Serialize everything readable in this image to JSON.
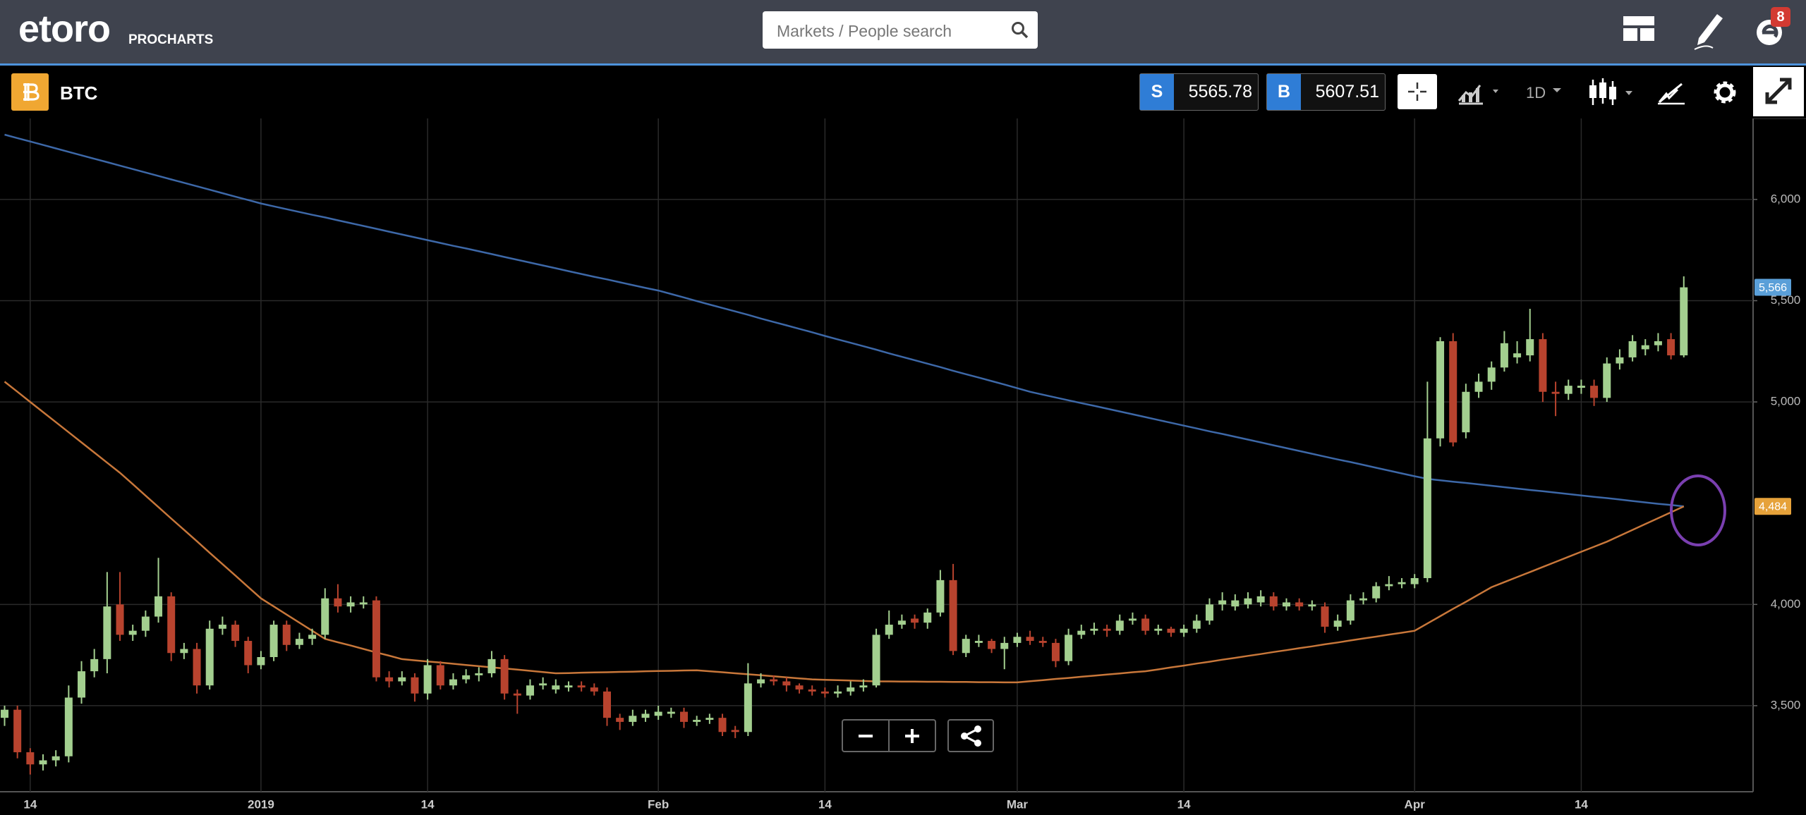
{
  "header": {
    "logo": "etoro",
    "logo_sub": "PROCHARTS",
    "search_placeholder": "Markets / People search",
    "notifications": 8
  },
  "toolbar": {
    "symbol": "BTC",
    "sell_label": "S",
    "sell_price": 5565.78,
    "buy_label": "B",
    "buy_price": 5607.51,
    "interval": "1D"
  },
  "chart_data": {
    "type": "candlestick",
    "categories": [
      null,
      null,
      "14",
      null,
      null,
      null,
      null,
      null,
      null,
      null,
      null,
      null,
      null,
      null,
      null,
      null,
      null,
      null,
      null,
      null,
      "2019",
      null,
      null,
      null,
      null,
      null,
      null,
      null,
      null,
      null,
      null,
      null,
      null,
      "14",
      null,
      null,
      null,
      null,
      null,
      null,
      null,
      null,
      null,
      null,
      null,
      null,
      null,
      null,
      null,
      null,
      null,
      "Feb",
      null,
      null,
      null,
      null,
      null,
      null,
      null,
      null,
      null,
      null,
      null,
      null,
      "14",
      null,
      null,
      null,
      null,
      null,
      null,
      null,
      null,
      null,
      null,
      null,
      null,
      null,
      null,
      "Mar",
      null,
      null,
      null,
      null,
      null,
      null,
      null,
      null,
      null,
      null,
      null,
      null,
      "14",
      null,
      null,
      null,
      null,
      null,
      null,
      null,
      null,
      null,
      null,
      null,
      null,
      null,
      null,
      null,
      null,
      null,
      "Apr",
      null,
      null,
      null,
      null,
      null,
      null,
      null,
      null,
      null,
      null,
      null,
      null,
      "14",
      null,
      null,
      null,
      null,
      null,
      null,
      null,
      null
    ],
    "open": [
      3440,
      3480,
      3270,
      3210,
      3230,
      3250,
      3540,
      3670,
      3730,
      4000,
      3850,
      3870,
      3940,
      4040,
      3760,
      3780,
      3600,
      3880,
      3900,
      3820,
      3700,
      3740,
      3900,
      3800,
      3830,
      3850,
      4030,
      3990,
      4000,
      4020,
      3640,
      3620,
      3640,
      3560,
      3700,
      3600,
      3630,
      3650,
      3660,
      3730,
      3560,
      3550,
      3600,
      3580,
      3590,
      3600,
      3590,
      3570,
      3440,
      3420,
      3440,
      3450,
      3460,
      3470,
      3420,
      3430,
      3440,
      3380,
      3370,
      3610,
      3630,
      3620,
      3600,
      3580,
      3570,
      3560,
      3570,
      3590,
      3600,
      3850,
      3900,
      3930,
      3910,
      3960,
      4120,
      3760,
      3810,
      3820,
      3780,
      3810,
      3840,
      3820,
      3810,
      3720,
      3850,
      3870,
      3880,
      3870,
      3920,
      3930,
      3870,
      3880,
      3860,
      3880,
      3920,
      4000,
      3990,
      4000,
      4010,
      4040,
      3990,
      4010,
      3990,
      3990,
      3890,
      3920,
      4020,
      4030,
      4090,
      4100,
      4100,
      4130,
      4820,
      5300,
      4850,
      5050,
      5100,
      5170,
      5220,
      5230,
      5310,
      5050,
      5040,
      5070,
      5080,
      5020,
      5190,
      5220,
      5260,
      5280,
      5310,
      5230
    ],
    "high": [
      3500,
      3500,
      3290,
      3260,
      3280,
      3600,
      3720,
      3780,
      4160,
      4160,
      3900,
      3970,
      4230,
      4060,
      3810,
      3810,
      3920,
      3940,
      3920,
      3840,
      3770,
      3920,
      3920,
      3860,
      3880,
      4080,
      4100,
      4040,
      4040,
      4040,
      3670,
      3670,
      3660,
      3730,
      3720,
      3660,
      3680,
      3690,
      3770,
      3750,
      3580,
      3630,
      3640,
      3630,
      3620,
      3620,
      3610,
      3590,
      3460,
      3480,
      3480,
      3500,
      3490,
      3490,
      3450,
      3460,
      3460,
      3400,
      3710,
      3660,
      3650,
      3640,
      3610,
      3600,
      3590,
      3600,
      3620,
      3630,
      3880,
      3970,
      3950,
      3950,
      3980,
      4170,
      4200,
      3850,
      3850,
      3830,
      3840,
      3860,
      3870,
      3840,
      3830,
      3880,
      3900,
      3910,
      3900,
      3950,
      3960,
      3950,
      3900,
      3890,
      3900,
      3950,
      4030,
      4060,
      4050,
      4060,
      4070,
      4060,
      4030,
      4030,
      4020,
      4010,
      3950,
      4050,
      4060,
      4110,
      4140,
      4130,
      4150,
      5100,
      5320,
      5340,
      5090,
      5140,
      5200,
      5350,
      5300,
      5460,
      5340,
      5100,
      5110,
      5110,
      5110,
      5220,
      5260,
      5330,
      5310,
      5340,
      5340,
      5620
    ],
    "low": [
      3400,
      3240,
      3160,
      3180,
      3200,
      3220,
      3510,
      3640,
      3660,
      3820,
      3820,
      3840,
      3910,
      3720,
      3730,
      3560,
      3580,
      3850,
      3790,
      3660,
      3680,
      3720,
      3770,
      3780,
      3800,
      3830,
      3960,
      3960,
      3980,
      3620,
      3590,
      3600,
      3520,
      3530,
      3580,
      3580,
      3610,
      3620,
      3640,
      3530,
      3460,
      3530,
      3580,
      3560,
      3570,
      3570,
      3550,
      3400,
      3380,
      3400,
      3420,
      3430,
      3440,
      3390,
      3400,
      3410,
      3350,
      3340,
      3350,
      3590,
      3600,
      3570,
      3560,
      3550,
      3540,
      3540,
      3550,
      3570,
      3590,
      3830,
      3880,
      3880,
      3880,
      3940,
      3750,
      3740,
      3790,
      3760,
      3680,
      3790,
      3800,
      3790,
      3690,
      3700,
      3830,
      3850,
      3840,
      3850,
      3900,
      3850,
      3850,
      3840,
      3840,
      3860,
      3900,
      3970,
      3970,
      3980,
      3990,
      3970,
      3970,
      3970,
      3970,
      3860,
      3870,
      3900,
      4000,
      4010,
      4070,
      4080,
      4080,
      4110,
      4780,
      4780,
      4820,
      5020,
      5060,
      5150,
      5190,
      5200,
      5000,
      4930,
      5010,
      5040,
      4980,
      5000,
      5160,
      5200,
      5230,
      5250,
      5210,
      5220
    ],
    "close": [
      3480,
      3270,
      3210,
      3230,
      3250,
      3540,
      3670,
      3730,
      3990,
      3850,
      3870,
      3940,
      4040,
      3760,
      3780,
      3600,
      3880,
      3900,
      3820,
      3700,
      3740,
      3900,
      3800,
      3830,
      3850,
      4030,
      3990,
      4010,
      4010,
      3640,
      3620,
      3640,
      3560,
      3700,
      3600,
      3630,
      3650,
      3660,
      3730,
      3560,
      3550,
      3600,
      3610,
      3600,
      3600,
      3590,
      3570,
      3440,
      3420,
      3450,
      3460,
      3470,
      3470,
      3420,
      3430,
      3440,
      3370,
      3370,
      3610,
      3630,
      3620,
      3600,
      3580,
      3570,
      3560,
      3570,
      3590,
      3600,
      3850,
      3900,
      3920,
      3910,
      3960,
      4120,
      3770,
      3830,
      3820,
      3780,
      3810,
      3840,
      3820,
      3810,
      3720,
      3850,
      3870,
      3880,
      3870,
      3920,
      3930,
      3870,
      3880,
      3860,
      3880,
      3920,
      4000,
      4020,
      4020,
      4030,
      4040,
      3990,
      4010,
      3990,
      4000,
      3890,
      3920,
      4020,
      4030,
      4090,
      4100,
      4110,
      4130,
      4820,
      5300,
      4800,
      5050,
      5100,
      5170,
      5290,
      5240,
      5310,
      5050,
      5040,
      5080,
      5080,
      5020,
      5190,
      5220,
      5300,
      5280,
      5300,
      5230,
      5566
    ],
    "up_color": "#a3cf8f",
    "down_color": "#b8432e",
    "lines": [
      {
        "color": "#3d68a8",
        "values": [
          6320,
          6303,
          6286,
          6269,
          6252,
          6235,
          6218,
          6201,
          6184,
          6167,
          6150,
          6133,
          6116,
          6099,
          6082,
          6065,
          6048,
          6031,
          6014,
          5997,
          5980,
          5966,
          5952,
          5938,
          5924,
          5911,
          5897,
          5883,
          5869,
          5855,
          5841,
          5827,
          5813,
          5799,
          5785,
          5771,
          5758,
          5744,
          5730,
          5716,
          5702,
          5688,
          5674,
          5660,
          5646,
          5632,
          5618,
          5605,
          5591,
          5577,
          5563,
          5550,
          5533,
          5516,
          5498,
          5481,
          5464,
          5447,
          5430,
          5412,
          5395,
          5378,
          5361,
          5344,
          5326,
          5309,
          5292,
          5275,
          5258,
          5240,
          5223,
          5206,
          5189,
          5172,
          5154,
          5137,
          5120,
          5103,
          5086,
          5068,
          5050,
          5036,
          5022,
          5008,
          4994,
          4981,
          4967,
          4953,
          4939,
          4925,
          4911,
          4897,
          4883,
          4869,
          4855,
          4842,
          4828,
          4814,
          4800,
          4786,
          4772,
          4758,
          4744,
          4730,
          4716,
          4703,
          4689,
          4675,
          4661,
          4647,
          4633,
          4620,
          4613,
          4606,
          4600,
          4593,
          4586,
          4579,
          4572,
          4565,
          4559,
          4552,
          4545,
          4538,
          4531,
          4525,
          4518,
          4511,
          4504,
          4497,
          4491,
          4484
        ]
      },
      {
        "color": "#c8773a",
        "values": [
          5100,
          5050,
          5000,
          4950,
          4900,
          4850,
          4800,
          4750,
          4700,
          4650,
          4594,
          4537,
          4481,
          4424,
          4368,
          4312,
          4255,
          4199,
          4143,
          4086,
          4030,
          3990,
          3950,
          3910,
          3870,
          3830,
          3813,
          3797,
          3780,
          3763,
          3747,
          3730,
          3724,
          3718,
          3713,
          3707,
          3701,
          3695,
          3689,
          3684,
          3678,
          3672,
          3666,
          3660,
          3661,
          3663,
          3664,
          3665,
          3667,
          3668,
          3670,
          3671,
          3672,
          3674,
          3675,
          3670,
          3665,
          3660,
          3655,
          3650,
          3645,
          3640,
          3635,
          3630,
          3628,
          3626,
          3624,
          3622,
          3620,
          3620,
          3619,
          3619,
          3618,
          3618,
          3617,
          3617,
          3616,
          3616,
          3615,
          3615,
          3621,
          3626,
          3632,
          3637,
          3643,
          3648,
          3654,
          3659,
          3665,
          3670,
          3679,
          3689,
          3698,
          3708,
          3717,
          3727,
          3736,
          3746,
          3755,
          3765,
          3774,
          3784,
          3793,
          3803,
          3812,
          3822,
          3832,
          3841,
          3851,
          3860,
          3870,
          3906,
          3942,
          3978,
          4013,
          4049,
          4085,
          4110,
          4135,
          4160,
          4185,
          4210,
          4235,
          4260,
          4285,
          4310,
          4339,
          4368,
          4397,
          4426,
          4455,
          4484
        ]
      }
    ],
    "ylim": [
      3075,
      6400
    ],
    "yticks": [
      {
        "value": 3500,
        "label": "3,500"
      },
      {
        "value": 4000,
        "label": "4,000"
      },
      {
        "value": 5000,
        "label": "5,000"
      },
      {
        "value": 5500,
        "label": "5,500"
      },
      {
        "value": 6000,
        "label": "6,000"
      }
    ],
    "markers": [
      {
        "value": 5566,
        "label": "5,566",
        "color": "#5a9fd8"
      },
      {
        "value": 4484,
        "label": "4,484",
        "color": "#e6a23a"
      }
    ],
    "grid": true
  }
}
